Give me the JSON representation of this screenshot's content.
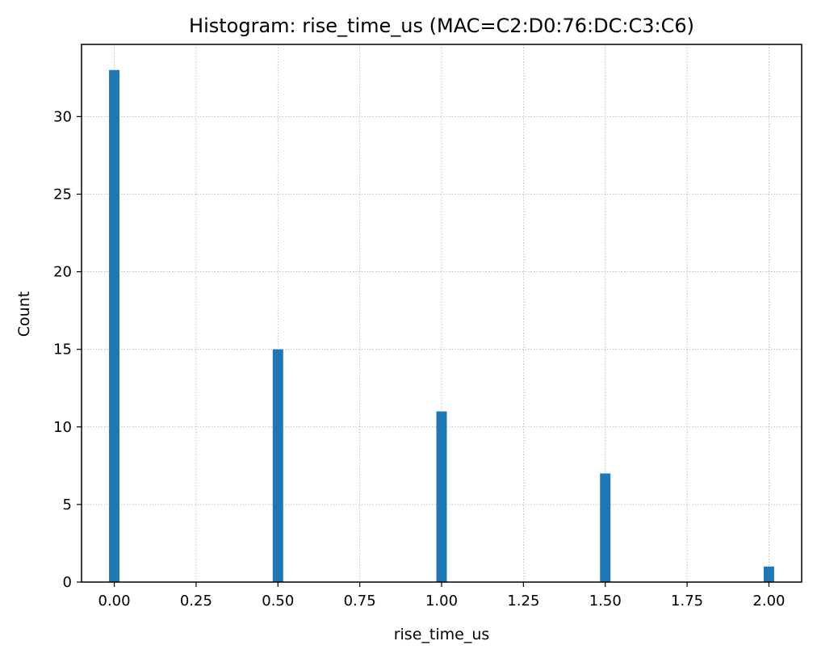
{
  "chart_data": {
    "type": "bar",
    "title": "Histogram: rise_time_us (MAC=C2:D0:76:DC:C3:C6)",
    "xlabel": "rise_time_us",
    "ylabel": "Count",
    "bins": [
      {
        "x": 0.0,
        "count": 33
      },
      {
        "x": 0.5,
        "count": 15
      },
      {
        "x": 1.0,
        "count": 11
      },
      {
        "x": 1.5,
        "count": 7
      },
      {
        "x": 2.0,
        "count": 1
      }
    ],
    "bin_width": 0.032,
    "xlim": [
      -0.1,
      2.1
    ],
    "ylim": [
      0,
      34.65
    ],
    "xticks": [
      0.0,
      0.25,
      0.5,
      0.75,
      1.0,
      1.25,
      1.5,
      1.75,
      2.0
    ],
    "xtick_labels": [
      "0.00",
      "0.25",
      "0.50",
      "0.75",
      "1.00",
      "1.25",
      "1.50",
      "1.75",
      "2.00"
    ],
    "yticks": [
      0,
      5,
      10,
      15,
      20,
      25,
      30
    ],
    "ytick_labels": [
      "0",
      "5",
      "10",
      "15",
      "20",
      "25",
      "30"
    ],
    "grid": true,
    "bar_color": "#1f77b4"
  }
}
